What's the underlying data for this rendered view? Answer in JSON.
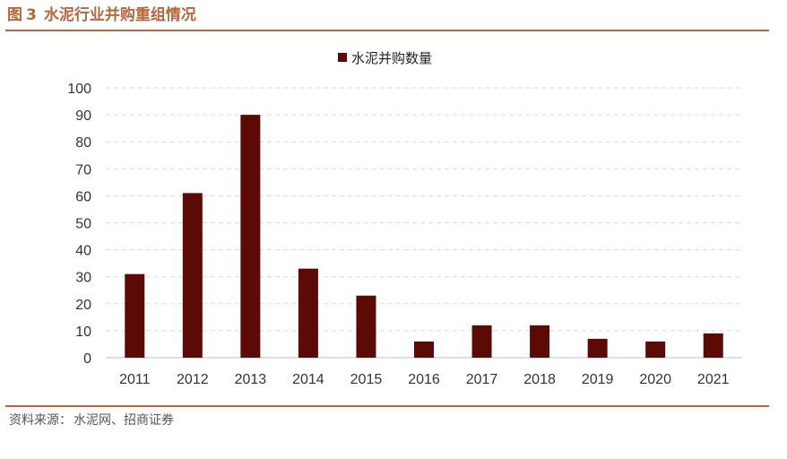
{
  "figure": {
    "label": "图",
    "number": "3",
    "title": "水泥行业并购重组情况"
  },
  "source": {
    "label": "资料来源：",
    "text": "水泥网、招商证券"
  },
  "chart_data": {
    "type": "bar",
    "categories": [
      "2011",
      "2012",
      "2013",
      "2014",
      "2015",
      "2016",
      "2017",
      "2018",
      "2019",
      "2020",
      "2021"
    ],
    "series": [
      {
        "name": "水泥并购数量",
        "values": [
          31,
          61,
          90,
          33,
          23,
          6,
          12,
          12,
          7,
          6,
          9
        ]
      }
    ],
    "yticks": [
      0,
      10,
      20,
      30,
      40,
      50,
      60,
      70,
      80,
      90,
      100
    ],
    "ylim": [
      0,
      100
    ],
    "xlabel": "",
    "ylabel": "",
    "grid": true,
    "legend": "top-center",
    "colors": {
      "bar": "#5C0A06",
      "grid": "#D9D9D9",
      "axis": "#BFBFBF",
      "accent": "#B5663B"
    }
  }
}
